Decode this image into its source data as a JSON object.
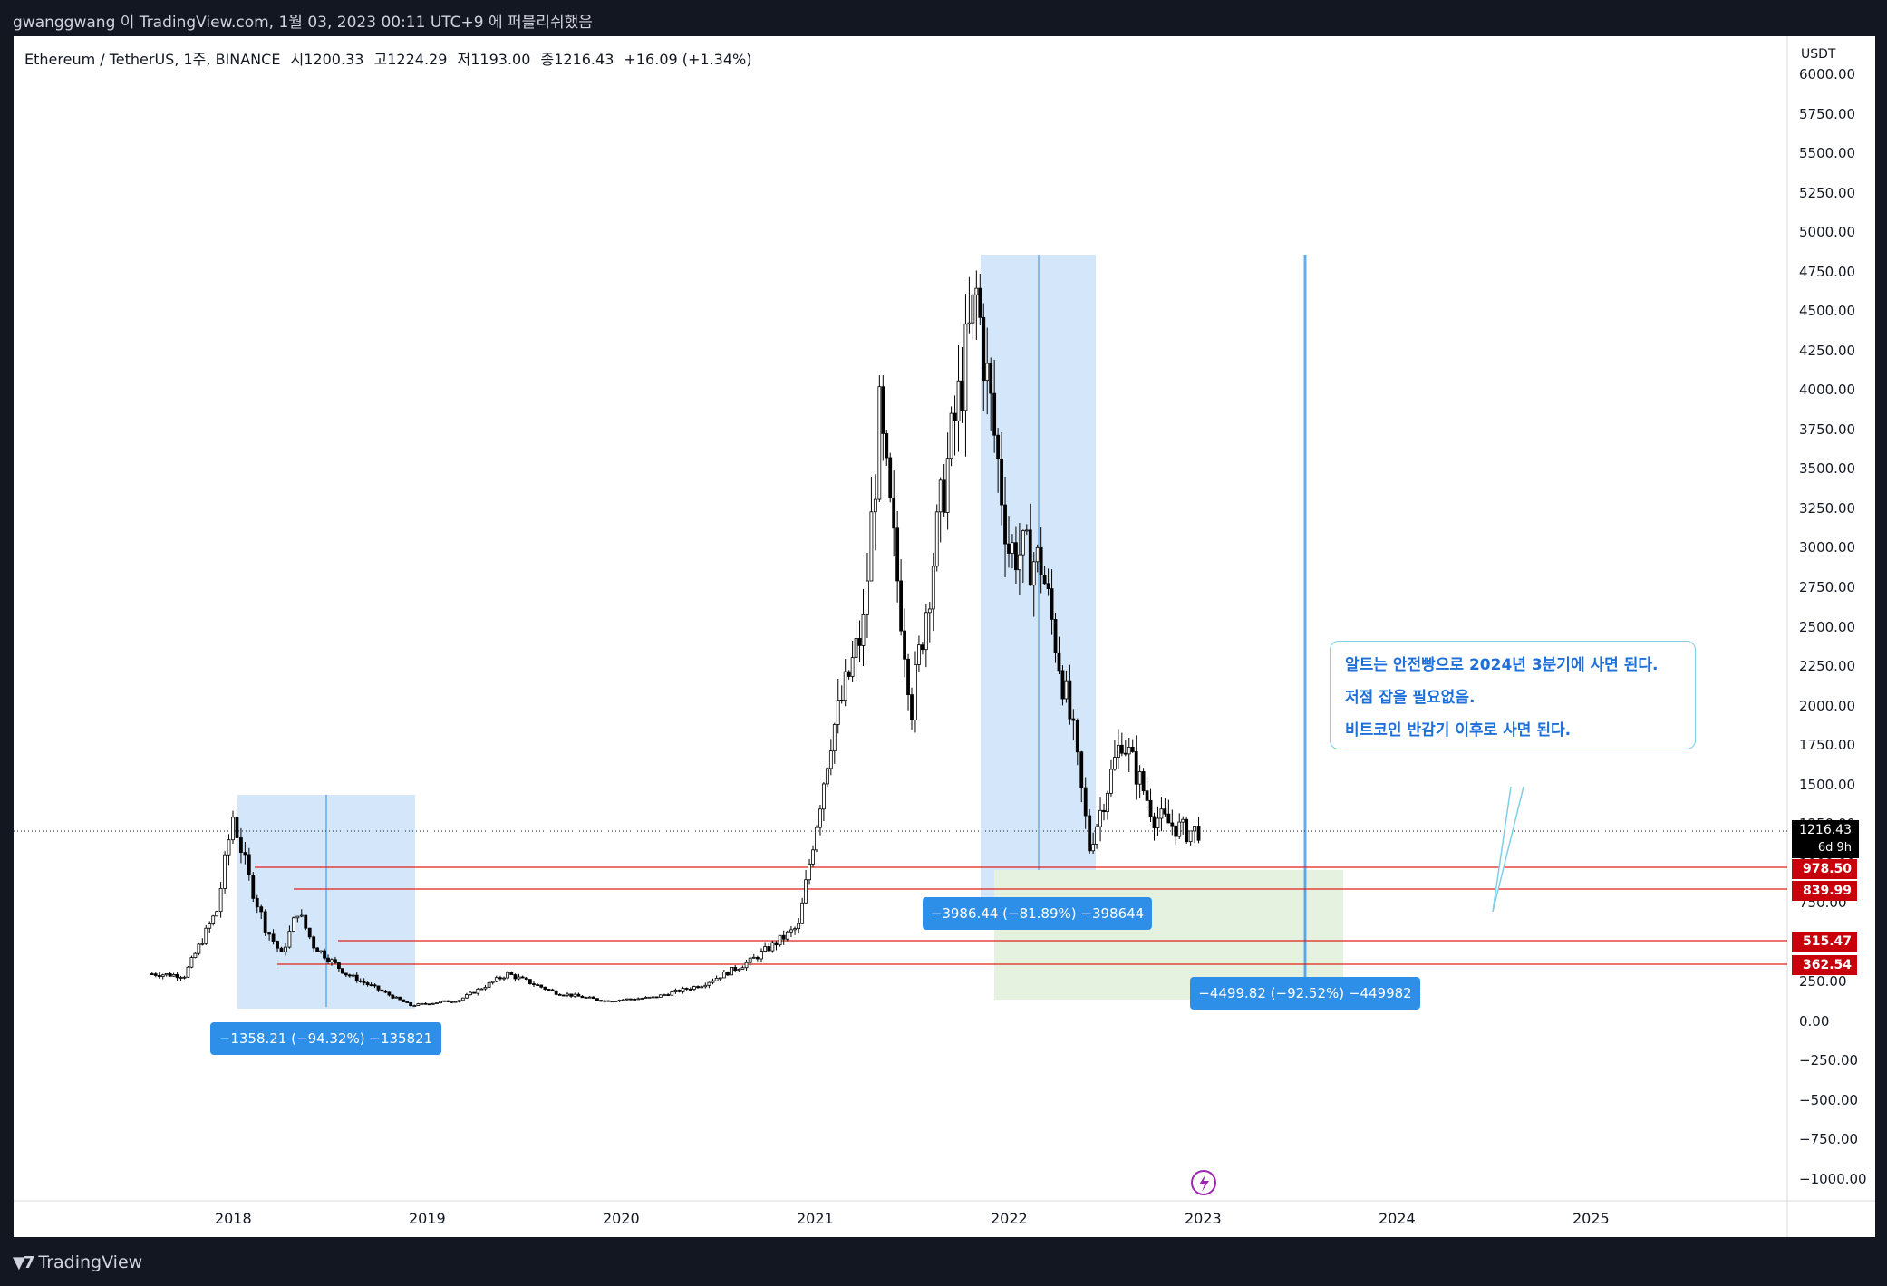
{
  "header": {
    "caption": "gwanggwang 이 TradingView.com, 1월 03, 2023 00:11 UTC+9 에 퍼블리쉬했음"
  },
  "legend": {
    "symbol": "Ethereum / TetherUS, 1주, BINANCE",
    "open": "시1200.33",
    "high": "고1224.29",
    "low": "저1193.00",
    "close": "종1216.43",
    "change": "+16.09 (+1.34%)"
  },
  "price_axis": {
    "unit": "USDT",
    "current_price": "1216.43",
    "countdown": "6d 9h"
  },
  "horizontal_levels": [
    {
      "label": "978.50",
      "value": 978.5,
      "color": "#e0221b"
    },
    {
      "label": "839.99",
      "value": 839.99,
      "color": "#e0221b"
    },
    {
      "label": "515.47",
      "value": 515.47,
      "color": "#e0221b"
    },
    {
      "label": "362.54",
      "value": 362.54,
      "color": "#e0221b"
    }
  ],
  "measurements": [
    {
      "label": "−1358.21 (−94.32%) −135821"
    },
    {
      "label": "−3986.44 (−81.89%) −398644"
    },
    {
      "label": "−4499.82 (−92.52%) −449982"
    }
  ],
  "note": {
    "lines": [
      "알트는 안전빵으로 2024년 3분기에 사면 된다.",
      "저점 잡을 필요없음.",
      "비트코인 반감기 이후로 사면 된다."
    ]
  },
  "footer": {
    "brand": "TradingView"
  },
  "colors": {
    "background": "#131722",
    "measure_fill": "#cfe3f8",
    "measure_label": "#2e8fe8",
    "level_line": "#e0221b",
    "target_zone": "#e4f2df",
    "note_text": "#1e6fd9"
  },
  "chart_data": {
    "type": "candlestick",
    "title": "Ethereum / TetherUS, 1주, BINANCE",
    "y_unit": "USDT",
    "ylim": [
      -1000,
      6000
    ],
    "y_ticks": [
      "6000.00",
      "5750.00",
      "5500.00",
      "5250.00",
      "5000.00",
      "4750.00",
      "4500.00",
      "4250.00",
      "4000.00",
      "3750.00",
      "3500.00",
      "3250.00",
      "3000.00",
      "2750.00",
      "2500.00",
      "2250.00",
      "2000.00",
      "1750.00",
      "1500.00",
      "1250.00",
      "1000.00",
      "750.00",
      "500.00",
      "250.00",
      "0.00",
      "−250.00",
      "−500.00",
      "−750.00",
      "−1000.00"
    ],
    "x_ticks": [
      "2018",
      "2019",
      "2020",
      "2021",
      "2022",
      "2023",
      "2024",
      "2025"
    ],
    "approx_weekly_closes": [
      [
        "2017-08",
        300
      ],
      [
        "2017-10",
        290
      ],
      [
        "2017-12",
        700
      ],
      [
        "2018-01",
        1300
      ],
      [
        "2018-02",
        900
      ],
      [
        "2018-03",
        600
      ],
      [
        "2018-04",
        420
      ],
      [
        "2018-05",
        700
      ],
      [
        "2018-06",
        480
      ],
      [
        "2018-08",
        300
      ],
      [
        "2018-10",
        200
      ],
      [
        "2018-12",
        100
      ],
      [
        "2019-03",
        135
      ],
      [
        "2019-06",
        300
      ],
      [
        "2019-09",
        180
      ],
      [
        "2019-12",
        130
      ],
      [
        "2020-03",
        150
      ],
      [
        "2020-06",
        230
      ],
      [
        "2020-09",
        380
      ],
      [
        "2020-12",
        600
      ],
      [
        "2021-02",
        1800
      ],
      [
        "2021-04",
        2500
      ],
      [
        "2021-05",
        3800
      ],
      [
        "2021-07",
        2000
      ],
      [
        "2021-09",
        3400
      ],
      [
        "2021-11",
        4600
      ],
      [
        "2022-01",
        3000
      ],
      [
        "2022-03",
        2900
      ],
      [
        "2022-05",
        1800
      ],
      [
        "2022-06",
        1100
      ],
      [
        "2022-08",
        1800
      ],
      [
        "2022-10",
        1300
      ],
      [
        "2022-12",
        1200
      ],
      [
        "2023-01",
        1216.43
      ]
    ],
    "grid": false,
    "legend": "top-left"
  }
}
